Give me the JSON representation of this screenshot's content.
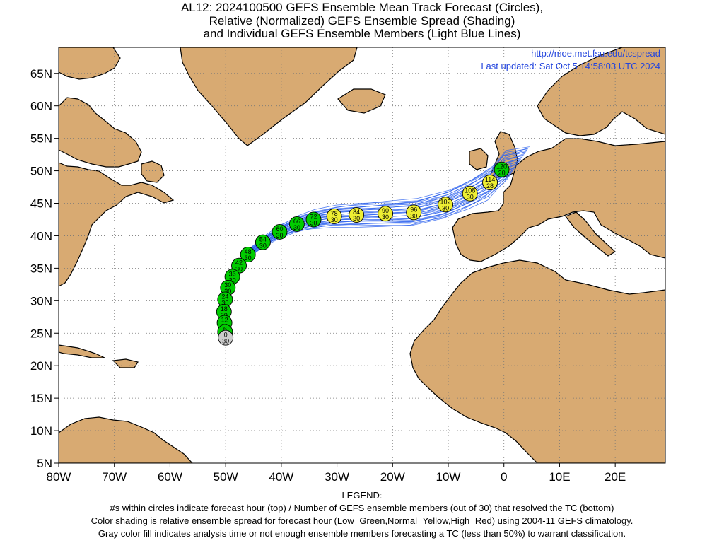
{
  "title_lines": [
    "AL12: 2024100500 GEFS Ensemble Mean Track Forecast (Circles),",
    "Relative (Normalized) GEFS Ensemble Spread (Shading)",
    "and Individual GEFS Ensemble Members (Light Blue Lines)"
  ],
  "header_url": "http://moe.met.fsu.edu/tcspread",
  "last_updated": "Last updated: Sat Oct 5 14:58:03 UTC 2024",
  "map": {
    "lon_range": [
      -80,
      29
    ],
    "lat_range": [
      5,
      69
    ],
    "x_ticks": [
      "80W",
      "70W",
      "60W",
      "50W",
      "40W",
      "30W",
      "20W",
      "10W",
      "0",
      "10E",
      "20E"
    ],
    "y_ticks": [
      "5N",
      "10N",
      "15N",
      "20N",
      "25N",
      "30N",
      "35N",
      "40N",
      "45N",
      "50N",
      "55N",
      "60N",
      "65N"
    ],
    "colors": {
      "land": "#d8aa72",
      "ocean": "#ffffff",
      "member_lines": "#3366ee",
      "low_spread": "#00cc00",
      "normal_spread": "#eeee33",
      "high_spread": "#ee2222",
      "not_classified": "#cccccc",
      "url_text": "#2244dd"
    }
  },
  "track_points": [
    {
      "hour": "0",
      "members": "30",
      "lon": -50.0,
      "lat": 24.3,
      "spread": "none"
    },
    {
      "hour": "6",
      "members": "30",
      "lon": -50.1,
      "lat": 25.2,
      "spread": "low"
    },
    {
      "hour": "12",
      "members": "30",
      "lon": -50.2,
      "lat": 26.6,
      "spread": "low"
    },
    {
      "hour": "18",
      "members": "30",
      "lon": -50.3,
      "lat": 28.3,
      "spread": "low"
    },
    {
      "hour": "24",
      "members": "30",
      "lon": -50.1,
      "lat": 30.2,
      "spread": "low"
    },
    {
      "hour": "30",
      "members": "30",
      "lon": -49.6,
      "lat": 32.0,
      "spread": "low"
    },
    {
      "hour": "36",
      "members": "30",
      "lon": -48.8,
      "lat": 33.7,
      "spread": "low"
    },
    {
      "hour": "42",
      "members": "30",
      "lon": -47.6,
      "lat": 35.4,
      "spread": "low"
    },
    {
      "hour": "48",
      "members": "30",
      "lon": -46.0,
      "lat": 37.1,
      "spread": "low"
    },
    {
      "hour": "54",
      "members": "30",
      "lon": -43.3,
      "lat": 39.0,
      "spread": "low"
    },
    {
      "hour": "60",
      "members": "30",
      "lon": -40.3,
      "lat": 40.6,
      "spread": "low"
    },
    {
      "hour": "66",
      "members": "30",
      "lon": -37.2,
      "lat": 41.8,
      "spread": "low"
    },
    {
      "hour": "72",
      "members": "30",
      "lon": -34.2,
      "lat": 42.5,
      "spread": "low"
    },
    {
      "hour": "78",
      "members": "30",
      "lon": -30.5,
      "lat": 43.0,
      "spread": "normal"
    },
    {
      "hour": "84",
      "members": "30",
      "lon": -26.5,
      "lat": 43.2,
      "spread": "normal"
    },
    {
      "hour": "90",
      "members": "30",
      "lon": -21.3,
      "lat": 43.4,
      "spread": "normal"
    },
    {
      "hour": "96",
      "members": "30",
      "lon": -16.2,
      "lat": 43.6,
      "spread": "normal"
    },
    {
      "hour": "102",
      "members": "30",
      "lon": -10.5,
      "lat": 44.8,
      "spread": "normal"
    },
    {
      "hour": "108",
      "members": "30",
      "lon": -6.1,
      "lat": 46.5,
      "spread": "normal"
    },
    {
      "hour": "114",
      "members": "28",
      "lon": -2.5,
      "lat": 48.2,
      "spread": "normal"
    },
    {
      "hour": "120",
      "members": "20",
      "lon": -0.4,
      "lat": 50.2,
      "spread": "low"
    }
  ],
  "legend": {
    "heading": "LEGEND:",
    "lines": [
      "#s within circles indicate forecast hour (top) / Number of GEFS ensemble members (out of 30) that resolved the TC (bottom)",
      "Color shading is relative ensemble spread for forecast hour (Low=Green,Normal=Yellow,High=Red) using 2004-11 GEFS climatology.",
      "Gray color fill indicates analysis time or not enough ensemble members forecasting a TC (less than 50%) to warrant classification."
    ]
  }
}
